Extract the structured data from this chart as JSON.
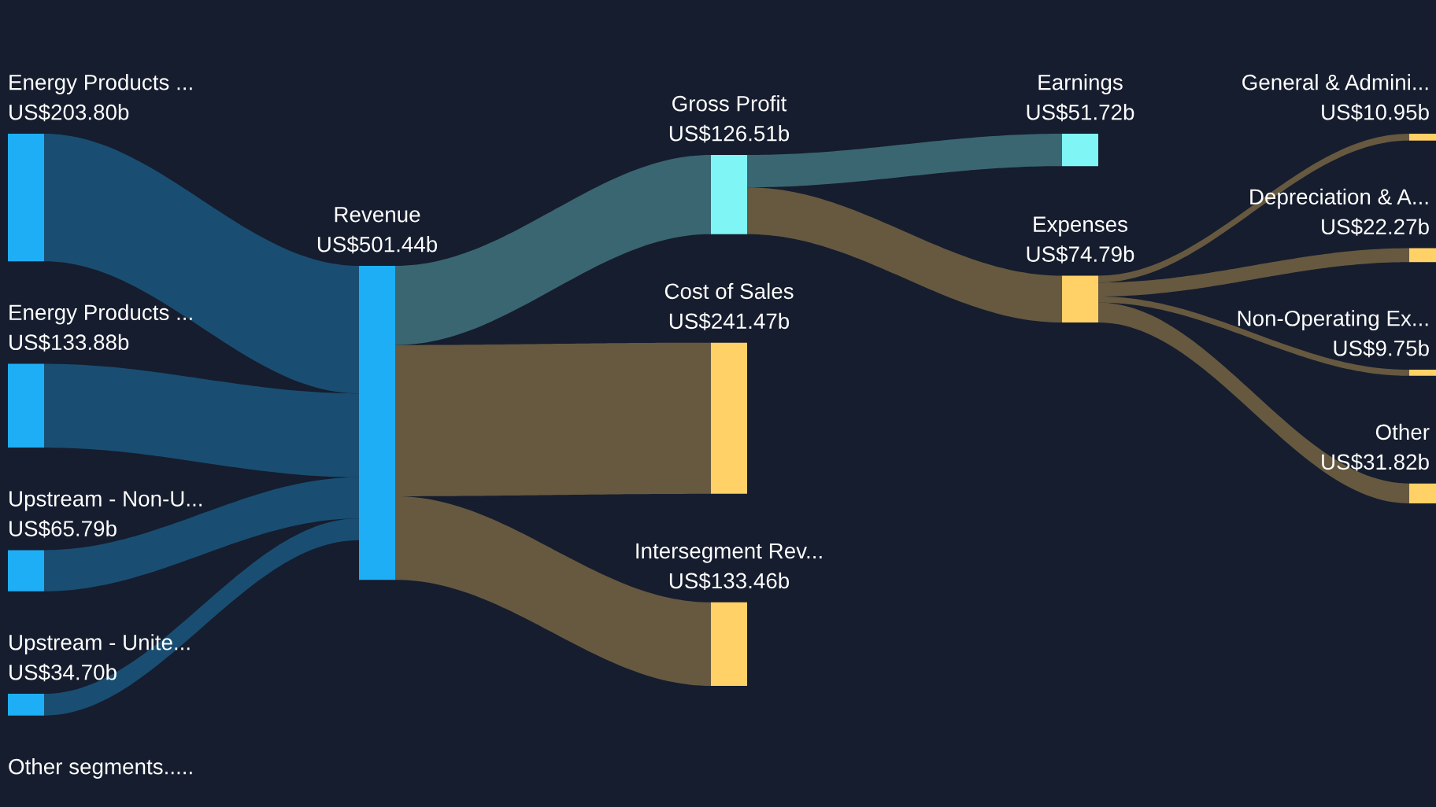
{
  "chart_data": {
    "type": "other",
    "categories": [
      "Energy Products ...",
      "Energy Products ...",
      "Upstream - Non-U...",
      "Upstream - Unite...",
      "Other segments.....",
      "Revenue",
      "Gross Profit",
      "Cost of Sales",
      "Intersegment Rev...",
      "Earnings",
      "Expenses",
      "General & Admini...",
      "Depreciation & A...",
      "Non-Operating Ex...",
      "Other"
    ],
    "series": [
      {
        "values": [
          203800000000,
          133880000000,
          65790000000,
          34700000000,
          null,
          null,
          null,
          null,
          null,
          null,
          null,
          null,
          null,
          null,
          null
        ],
        "value_labels": [
          "US$203.80b",
          "US$133.88b",
          "US$65.79b",
          "US$34.70b",
          null,
          null,
          null,
          null,
          null,
          null,
          null,
          null,
          null,
          null,
          null
        ]
      },
      {
        "values": [
          null,
          null,
          null,
          null,
          null,
          501440000000,
          null,
          null,
          null,
          null,
          null,
          null,
          null,
          null,
          null
        ],
        "value_labels": [
          null,
          null,
          null,
          null,
          null,
          "US$501.44b",
          null,
          null,
          null,
          null,
          null,
          null,
          null,
          null,
          null
        ]
      },
      {
        "values": [
          null,
          null,
          null,
          null,
          null,
          null,
          126510000000,
          241470000000,
          133460000000,
          null,
          null,
          null,
          null,
          null,
          null
        ],
        "value_labels": [
          null,
          null,
          null,
          null,
          null,
          null,
          "US$126.51b",
          "US$241.47b",
          "US$133.46b",
          null,
          null,
          null,
          null,
          null,
          null
        ]
      },
      {
        "values": [
          null,
          null,
          null,
          null,
          null,
          null,
          null,
          null,
          null,
          51720000000,
          74790000000,
          null,
          null,
          null,
          null
        ],
        "value_labels": [
          null,
          null,
          null,
          null,
          null,
          null,
          null,
          null,
          null,
          "US$51.72b",
          "US$74.79b",
          null,
          null,
          null,
          null
        ]
      },
      {
        "values": [
          null,
          null,
          null,
          null,
          null,
          null,
          null,
          null,
          null,
          null,
          null,
          10950000000,
          22270000000,
          9750000000,
          31820000000
        ],
        "value_labels": [
          null,
          null,
          null,
          null,
          null,
          null,
          null,
          null,
          null,
          null,
          null,
          "US$10.95b",
          "US$22.27b",
          "US$9.75b",
          "US$31.82b"
        ]
      }
    ],
    "colors": [
      "#1eaef5",
      "#1eaef5",
      "#1eaef5",
      "#1eaef5",
      "#1eaef5",
      "#1eaef5",
      "#7ff5f5",
      "#ffd166",
      "#ffd166",
      "#7ff5f5",
      "#ffd166",
      "#ffd166",
      "#ffd166",
      "#ffd166",
      "#ffd166"
    ]
  }
}
